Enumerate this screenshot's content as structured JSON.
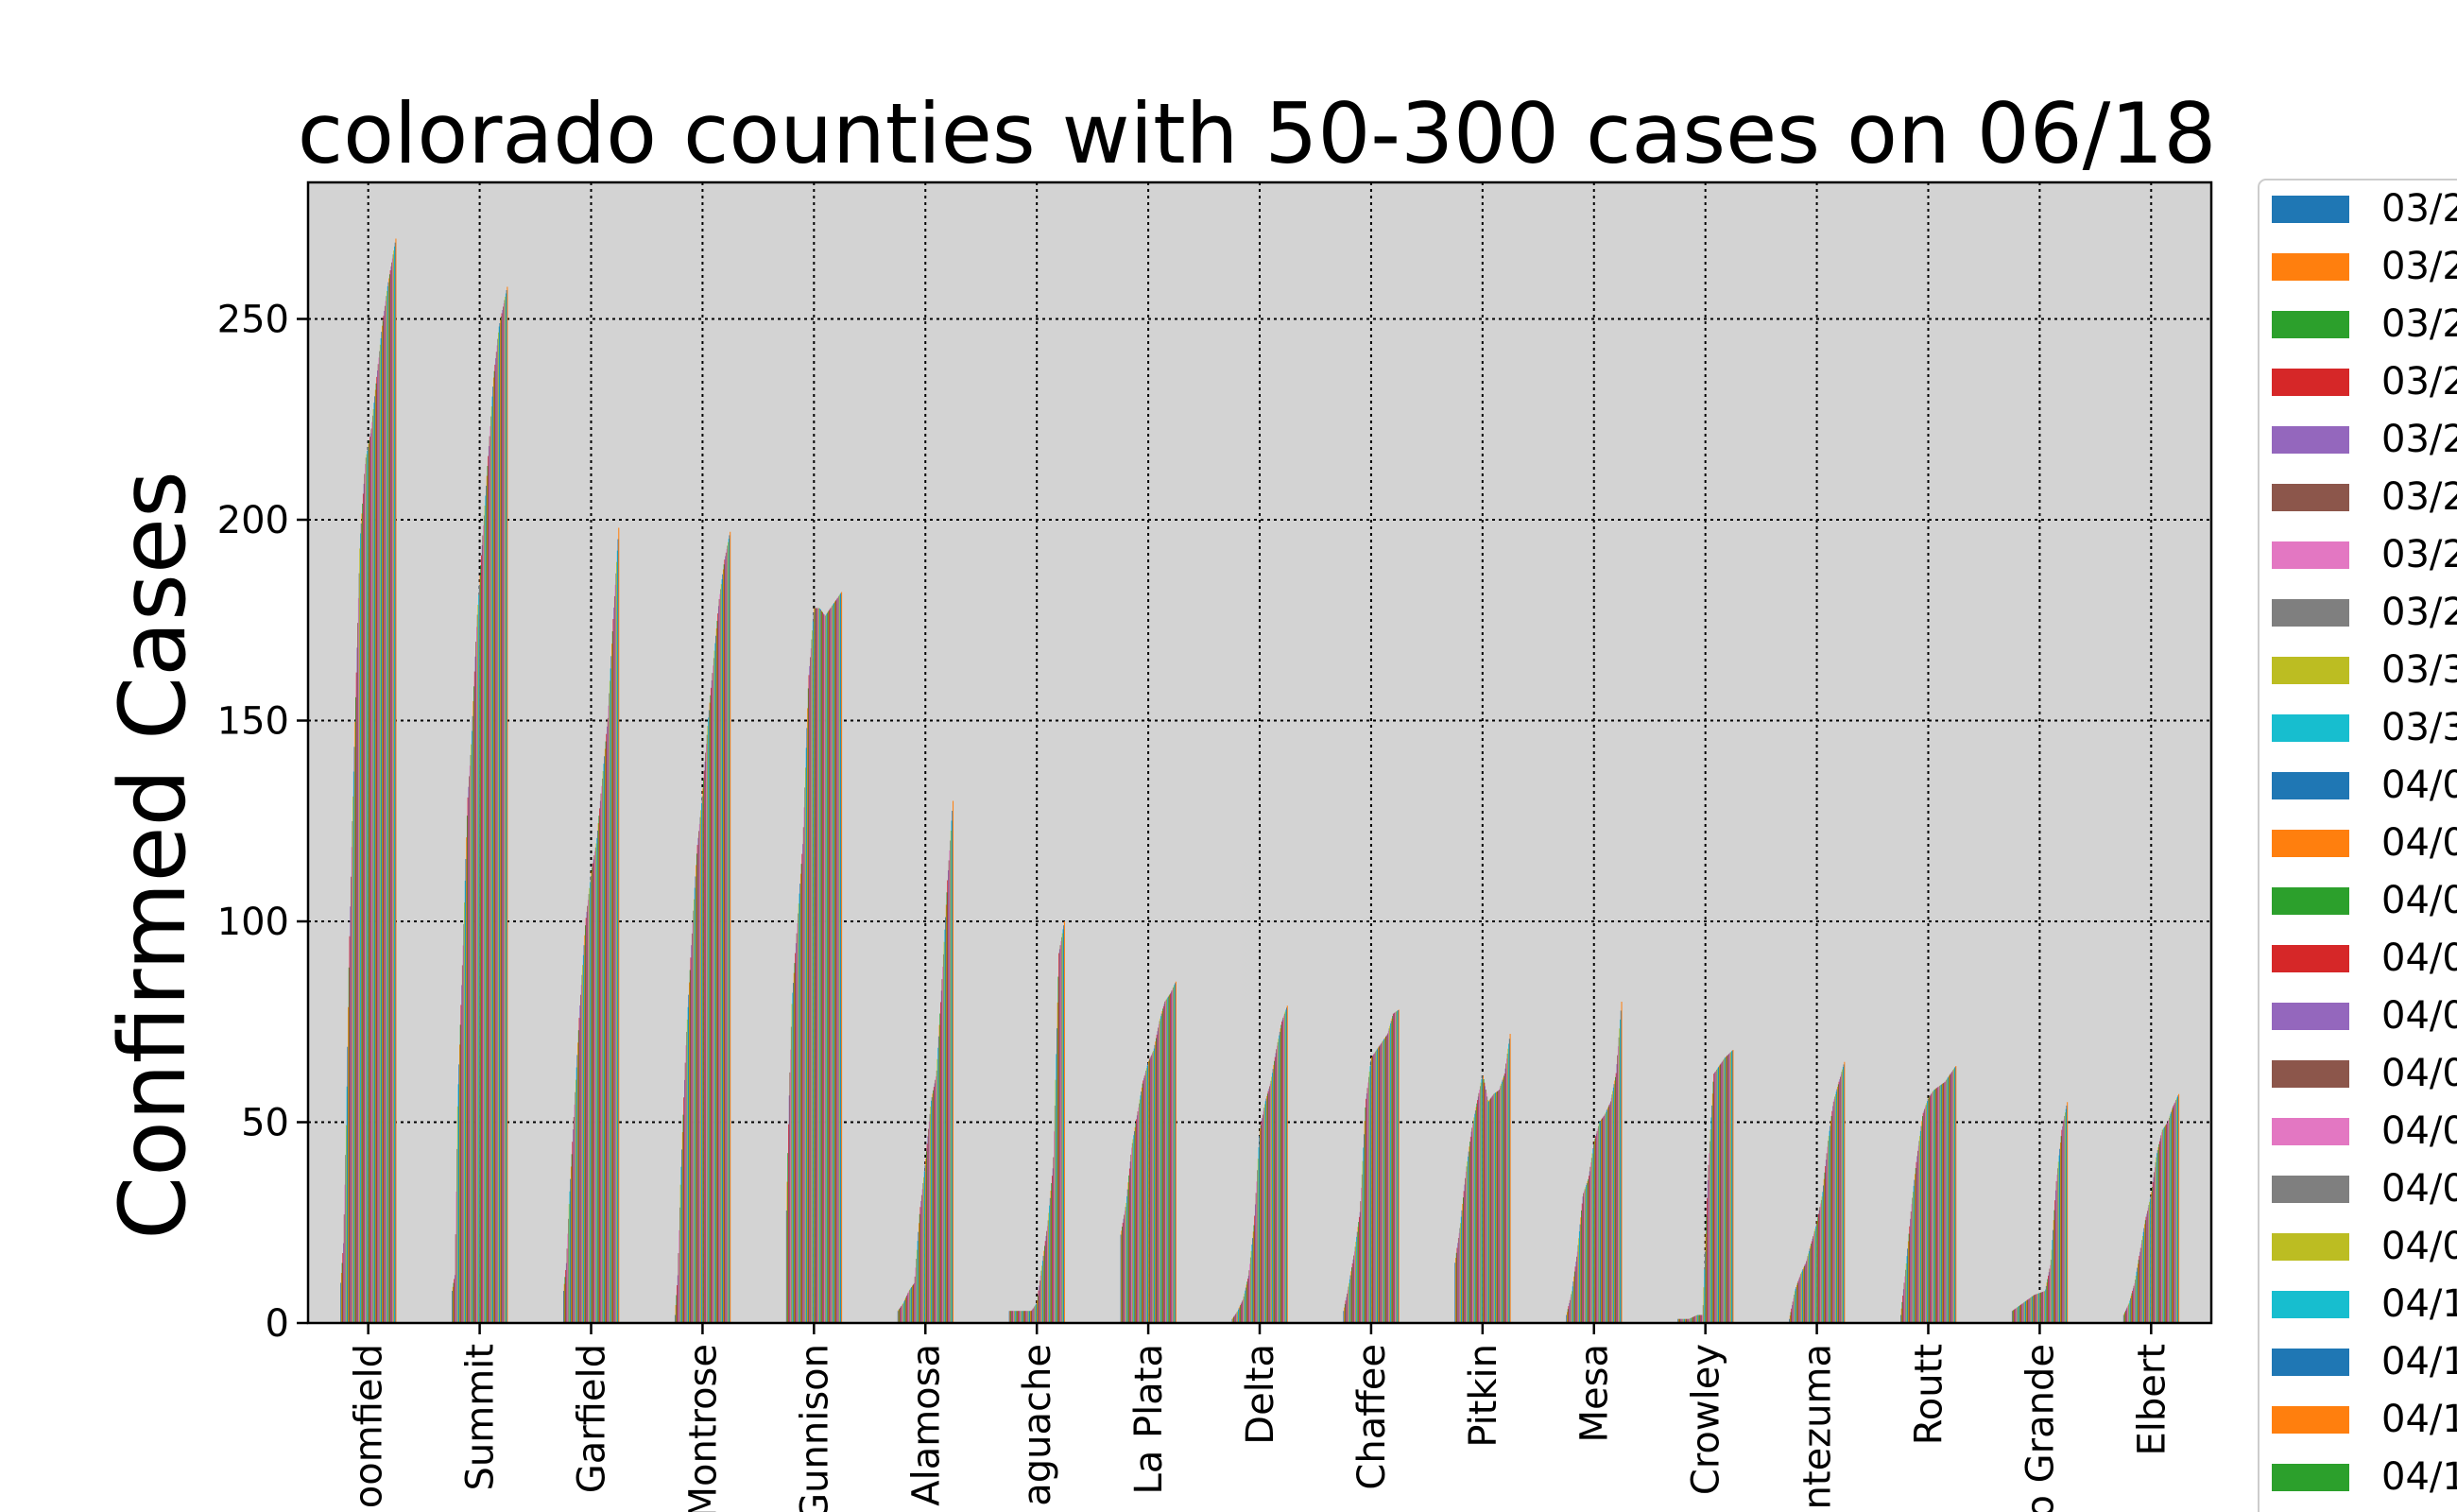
{
  "chart_data": {
    "type": "bar",
    "title": "colorado counties with 50-300 cases on 06/18",
    "xlabel": "",
    "ylabel": "Confirmed Cases",
    "ylim": [
      0,
      284
    ],
    "yticks": [
      0,
      50,
      100,
      150,
      200,
      250
    ],
    "grid": true,
    "legend_position": "right (outside plot, clipped)",
    "categories": [
      "Broomfield",
      "Summit",
      "Garfield",
      "Montrose",
      "Gunnison",
      "Alamosa",
      "Saguache",
      "La Plata",
      "Delta",
      "Chaffee",
      "Pitkin",
      "Mesa",
      "Crowley",
      "Montezuma",
      "Routt",
      "Rio Grande",
      "Elbert"
    ],
    "category_labels_visible": [
      "oomfield",
      "Summit",
      "Garfield",
      "Montrose",
      "Gunnison",
      "Alamosa",
      "aguache",
      "La Plata",
      "Delta",
      "Chaffee",
      "Pitkin",
      "Mesa",
      "Crowley",
      "ntezuma",
      "Routt",
      "o Grande",
      "Elbert"
    ],
    "series_count": 82,
    "trajectories": [
      [
        [
          0,
          10
        ],
        [
          0.05,
          20
        ],
        [
          0.1,
          50
        ],
        [
          0.15,
          90
        ],
        [
          0.2,
          120
        ],
        [
          0.28,
          160
        ],
        [
          0.35,
          195
        ],
        [
          0.45,
          215
        ],
        [
          0.55,
          222
        ],
        [
          0.65,
          235
        ],
        [
          0.75,
          248
        ],
        [
          0.85,
          258
        ],
        [
          1,
          270
        ]
      ],
      [
        [
          0,
          8
        ],
        [
          0.05,
          12
        ],
        [
          0.1,
          55
        ],
        [
          0.15,
          75
        ],
        [
          0.2,
          95
        ],
        [
          0.28,
          130
        ],
        [
          0.35,
          145
        ],
        [
          0.45,
          175
        ],
        [
          0.55,
          195
        ],
        [
          0.65,
          215
        ],
        [
          0.75,
          235
        ],
        [
          0.85,
          248
        ],
        [
          1,
          258
        ]
      ],
      [
        [
          0,
          8
        ],
        [
          0.05,
          15
        ],
        [
          0.1,
          30
        ],
        [
          0.2,
          55
        ],
        [
          0.3,
          80
        ],
        [
          0.4,
          100
        ],
        [
          0.5,
          112
        ],
        [
          0.6,
          120
        ],
        [
          0.7,
          135
        ],
        [
          0.8,
          150
        ],
        [
          0.9,
          175
        ],
        [
          1,
          198
        ]
      ],
      [
        [
          0,
          2
        ],
        [
          0.05,
          12
        ],
        [
          0.1,
          35
        ],
        [
          0.2,
          70
        ],
        [
          0.3,
          95
        ],
        [
          0.4,
          118
        ],
        [
          0.5,
          132
        ],
        [
          0.6,
          150
        ],
        [
          0.7,
          165
        ],
        [
          0.8,
          180
        ],
        [
          0.9,
          190
        ],
        [
          1,
          197
        ]
      ],
      [
        [
          0,
          28
        ],
        [
          0.05,
          57
        ],
        [
          0.1,
          80
        ],
        [
          0.2,
          100
        ],
        [
          0.3,
          120
        ],
        [
          0.4,
          160
        ],
        [
          0.5,
          178
        ],
        [
          0.6,
          178
        ],
        [
          0.7,
          176
        ],
        [
          0.8,
          178
        ],
        [
          0.9,
          180
        ],
        [
          1,
          182
        ]
      ],
      [
        [
          0,
          3
        ],
        [
          0.1,
          5
        ],
        [
          0.2,
          8
        ],
        [
          0.3,
          10
        ],
        [
          0.4,
          28
        ],
        [
          0.5,
          40
        ],
        [
          0.6,
          55
        ],
        [
          0.7,
          62
        ],
        [
          0.8,
          85
        ],
        [
          0.9,
          110
        ],
        [
          1,
          130
        ]
      ],
      [
        [
          0,
          3
        ],
        [
          0.2,
          3
        ],
        [
          0.4,
          3
        ],
        [
          0.5,
          5
        ],
        [
          0.6,
          15
        ],
        [
          0.7,
          25
        ],
        [
          0.8,
          40
        ],
        [
          0.9,
          92
        ],
        [
          1,
          100
        ]
      ],
      [
        [
          0,
          22
        ],
        [
          0.1,
          30
        ],
        [
          0.2,
          44
        ],
        [
          0.3,
          52
        ],
        [
          0.4,
          60
        ],
        [
          0.5,
          65
        ],
        [
          0.6,
          68
        ],
        [
          0.7,
          75
        ],
        [
          0.8,
          80
        ],
        [
          0.9,
          82
        ],
        [
          1,
          85
        ]
      ],
      [
        [
          0,
          1
        ],
        [
          0.1,
          3
        ],
        [
          0.2,
          6
        ],
        [
          0.3,
          12
        ],
        [
          0.4,
          25
        ],
        [
          0.5,
          48
        ],
        [
          0.6,
          55
        ],
        [
          0.7,
          60
        ],
        [
          0.8,
          68
        ],
        [
          0.9,
          75
        ],
        [
          1,
          79
        ]
      ],
      [
        [
          0,
          3
        ],
        [
          0.1,
          10
        ],
        [
          0.2,
          18
        ],
        [
          0.3,
          28
        ],
        [
          0.4,
          55
        ],
        [
          0.5,
          66
        ],
        [
          0.6,
          68
        ],
        [
          0.7,
          70
        ],
        [
          0.8,
          72
        ],
        [
          0.9,
          77
        ],
        [
          1,
          78
        ]
      ],
      [
        [
          0,
          15
        ],
        [
          0.1,
          25
        ],
        [
          0.2,
          38
        ],
        [
          0.3,
          48
        ],
        [
          0.4,
          55
        ],
        [
          0.5,
          62
        ],
        [
          0.6,
          55
        ],
        [
          0.7,
          57
        ],
        [
          0.8,
          58
        ],
        [
          0.9,
          62
        ],
        [
          1,
          72
        ]
      ],
      [
        [
          0,
          2
        ],
        [
          0.1,
          8
        ],
        [
          0.2,
          18
        ],
        [
          0.3,
          32
        ],
        [
          0.4,
          36
        ],
        [
          0.5,
          45
        ],
        [
          0.6,
          50
        ],
        [
          0.7,
          52
        ],
        [
          0.8,
          55
        ],
        [
          0.9,
          62
        ],
        [
          1,
          80
        ]
      ],
      [
        [
          0,
          1
        ],
        [
          0.2,
          1
        ],
        [
          0.35,
          2
        ],
        [
          0.45,
          2
        ],
        [
          0.55,
          38
        ],
        [
          0.65,
          62
        ],
        [
          0.75,
          64
        ],
        [
          0.85,
          66
        ],
        [
          1,
          68
        ]
      ],
      [
        [
          0,
          1
        ],
        [
          0.1,
          8
        ],
        [
          0.2,
          12
        ],
        [
          0.3,
          15
        ],
        [
          0.4,
          20
        ],
        [
          0.5,
          25
        ],
        [
          0.6,
          32
        ],
        [
          0.7,
          45
        ],
        [
          0.8,
          55
        ],
        [
          0.9,
          60
        ],
        [
          1,
          65
        ]
      ],
      [
        [
          0,
          2
        ],
        [
          0.1,
          15
        ],
        [
          0.2,
          30
        ],
        [
          0.3,
          42
        ],
        [
          0.4,
          52
        ],
        [
          0.5,
          56
        ],
        [
          0.6,
          58
        ],
        [
          0.7,
          59
        ],
        [
          0.8,
          60
        ],
        [
          0.9,
          62
        ],
        [
          1,
          64
        ]
      ],
      [
        [
          0,
          3
        ],
        [
          0.2,
          5
        ],
        [
          0.4,
          7
        ],
        [
          0.6,
          8
        ],
        [
          0.7,
          15
        ],
        [
          0.8,
          35
        ],
        [
          0.9,
          48
        ],
        [
          1,
          55
        ]
      ],
      [
        [
          0,
          2
        ],
        [
          0.1,
          5
        ],
        [
          0.2,
          10
        ],
        [
          0.3,
          18
        ],
        [
          0.4,
          26
        ],
        [
          0.5,
          32
        ],
        [
          0.6,
          42
        ],
        [
          0.7,
          48
        ],
        [
          0.8,
          50
        ],
        [
          0.9,
          54
        ],
        [
          1,
          57
        ]
      ]
    ],
    "legend": [
      {
        "label": "03/2",
        "color": "#1f77b4"
      },
      {
        "label": "03/2",
        "color": "#ff7f0e"
      },
      {
        "label": "03/2",
        "color": "#2ca02c"
      },
      {
        "label": "03/2",
        "color": "#d62728"
      },
      {
        "label": "03/2",
        "color": "#9467bd"
      },
      {
        "label": "03/2",
        "color": "#8c564b"
      },
      {
        "label": "03/2",
        "color": "#e377c2"
      },
      {
        "label": "03/2",
        "color": "#7f7f7f"
      },
      {
        "label": "03/3",
        "color": "#bcbd22"
      },
      {
        "label": "03/3",
        "color": "#17becf"
      },
      {
        "label": "04/0",
        "color": "#1f77b4"
      },
      {
        "label": "04/0",
        "color": "#ff7f0e"
      },
      {
        "label": "04/0",
        "color": "#2ca02c"
      },
      {
        "label": "04/0",
        "color": "#d62728"
      },
      {
        "label": "04/0",
        "color": "#9467bd"
      },
      {
        "label": "04/0",
        "color": "#8c564b"
      },
      {
        "label": "04/0",
        "color": "#e377c2"
      },
      {
        "label": "04/0",
        "color": "#7f7f7f"
      },
      {
        "label": "04/0",
        "color": "#bcbd22"
      },
      {
        "label": "04/1",
        "color": "#17becf"
      },
      {
        "label": "04/1",
        "color": "#1f77b4"
      },
      {
        "label": "04/1",
        "color": "#ff7f0e"
      },
      {
        "label": "04/1",
        "color": "#2ca02c"
      }
    ],
    "palette": [
      "#1f77b4",
      "#ff7f0e",
      "#2ca02c",
      "#d62728",
      "#9467bd",
      "#8c564b",
      "#e377c2",
      "#7f7f7f",
      "#bcbd22",
      "#17becf"
    ],
    "plot_background": "#d3d3d3"
  }
}
